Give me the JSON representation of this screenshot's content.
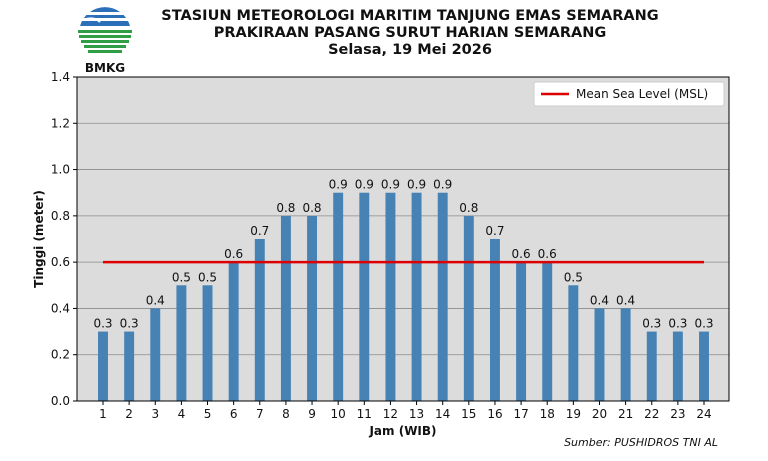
{
  "logo": {
    "text": "BMKG"
  },
  "header": {
    "title_line1": "STASIUN METEOROLOGI MARITIM TANJUNG EMAS SEMARANG",
    "title_line2": "PRAKIRAAN PASANG SURUT HARIAN SEMARANG",
    "title_line3": "Selasa, 19 Mei 2026"
  },
  "source": "Sumber: PUSHIDROS TNI AL",
  "chart_data": {
    "type": "bar",
    "categories": [
      "1",
      "2",
      "3",
      "4",
      "5",
      "6",
      "7",
      "8",
      "9",
      "10",
      "11",
      "12",
      "13",
      "14",
      "15",
      "16",
      "17",
      "18",
      "19",
      "20",
      "21",
      "22",
      "23",
      "24"
    ],
    "values": [
      0.3,
      0.3,
      0.4,
      0.5,
      0.5,
      0.6,
      0.7,
      0.8,
      0.8,
      0.9,
      0.9,
      0.9,
      0.9,
      0.9,
      0.8,
      0.7,
      0.6,
      0.6,
      0.5,
      0.4,
      0.4,
      0.3,
      0.3,
      0.3
    ],
    "value_labels": [
      "0.3",
      "0.3",
      "0.4",
      "0.5",
      "0.5",
      "0.6",
      "0.7",
      "0.8",
      "0.8",
      "0.9",
      "0.9",
      "0.9",
      "0.9",
      "0.9",
      "0.8",
      "0.7",
      "0.6",
      "0.6",
      "0.5",
      "0.4",
      "0.4",
      "0.3",
      "0.3",
      "0.3"
    ],
    "xlabel": "Jam (WIB)",
    "ylabel": "Tinggi (meter)",
    "ylim": [
      0,
      1.4
    ],
    "yticks": [
      "0.0",
      "0.2",
      "0.4",
      "0.6",
      "0.8",
      "1.0",
      "1.2",
      "1.4"
    ],
    "grid": true,
    "bar_color": "#4682b4",
    "background_color": "#dcdcdc",
    "reference_line": {
      "name": "Mean Sea Level (MSL)",
      "value": 0.6,
      "color": "#dd0000"
    },
    "legend_position": "top-right"
  }
}
